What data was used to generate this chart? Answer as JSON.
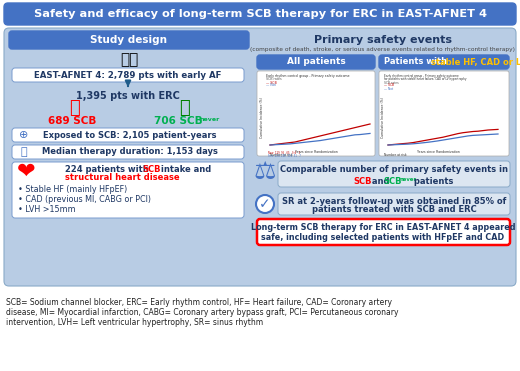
{
  "title": "Safety and efficacy of long-term SCB therapy for ERC in EAST-AFNET 4",
  "title_bg": "#4472c4",
  "title_color": "white",
  "left_header": "Study design",
  "right_header": "Primary safety events",
  "right_subheader": "(composite of death, stroke, or serious adverse events related to rhythm-control therapy)",
  "panel_bg": "#b8cce4",
  "inner_box_bg": "#dce6f1",
  "white": "#ffffff",
  "row1_text": "EAST-AFNET 4: 2,789 pts with early AF",
  "row2_text": "1,395 pts with ERC",
  "scb_count": "689 SCB",
  "scbnever_count": "706 SCB",
  "scb_color": "#ff0000",
  "scbnever_color": "#00b050",
  "row3_text": "Exposed to SCB: 2,105 patient-years",
  "row4_text": "Median therapy duration: 1,153 days",
  "bullet1": "Stable HF (mainly HFpEF)",
  "bullet2": "CAD (previous MI, CABG or PCI)",
  "bullet3": "LVH >15mm",
  "all_patients_label": "All patients",
  "comparable_line1": "Comparable number of primary safety events in",
  "comparable_line2_scb": "SCB",
  "comparable_line2_and": " and ",
  "comparable_line2_scbnever": "SCB",
  "comparable_line2_never": "never",
  "comparable_line2_end": " patients",
  "sr_line1": "SR at 2-years follow-up was obtained in 85% of",
  "sr_line2": "patients treated with SCB and ERC",
  "conclusion_line1": "Long-term SCB therapy for ERC in EAST-AFNET 4 appeared",
  "conclusion_line2": "safe, including selected patients with HFpEF and CAD",
  "conclusion_border": "#ff0000",
  "footnote_line1": "SCB= Sodium channel blocker, ERC= Early rhythm control, HF= Heart failure, CAD= Coronary artery",
  "footnote_line2": "disease, MI= Myocardial infarction, CABG= Coronary artery bypass graft, PCI= Percutaneous coronary",
  "footnote_line3": "intervention, LVH= Left ventricular hypertrophy, SR= sinus rhythm",
  "dark_blue": "#1f3864",
  "mid_blue": "#4472c4",
  "outer_bg": "#ffffff"
}
